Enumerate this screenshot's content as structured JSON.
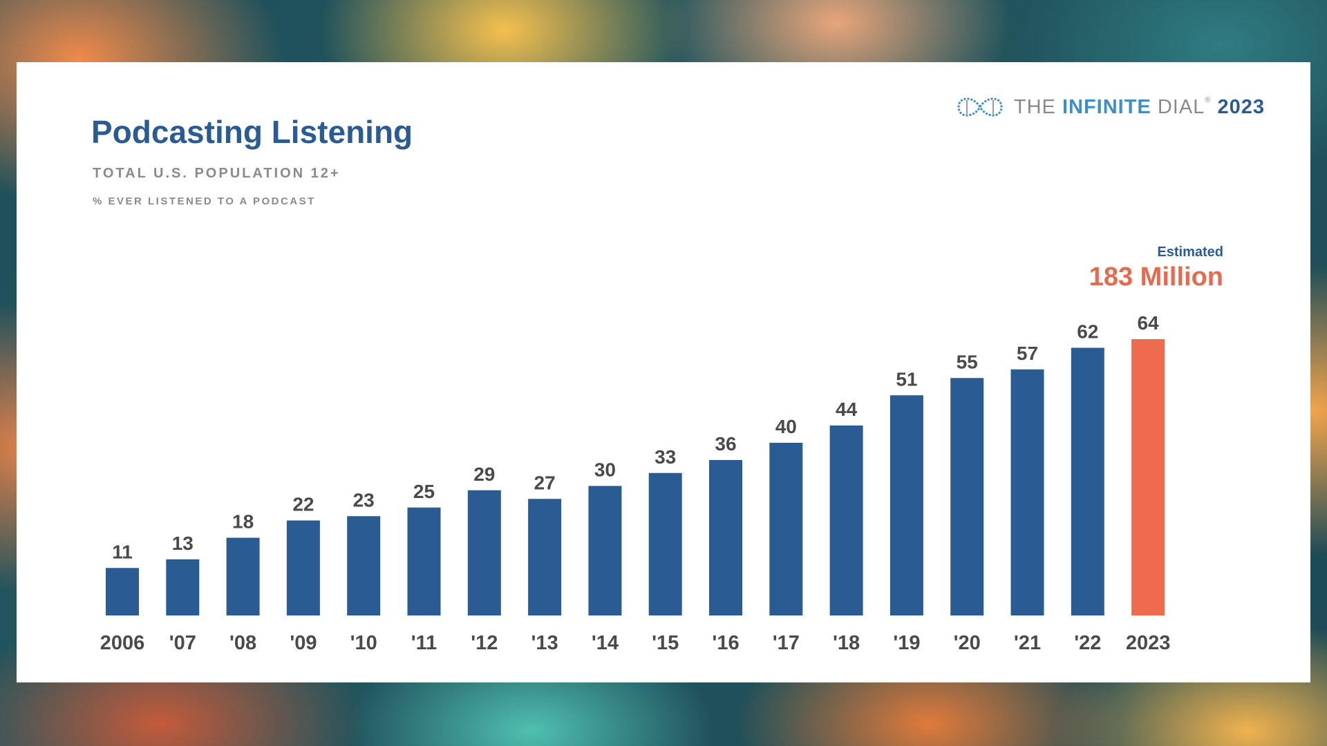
{
  "header": {
    "title": "Podcasting Listening",
    "subtitle": "TOTAL U.S. POPULATION 12+",
    "subsubtitle": "% EVER LISTENED TO A PODCAST"
  },
  "brand": {
    "prefix": "THE ",
    "highlight": "INFINITE",
    "middle": " DIAL",
    "registered": "®",
    "year": "2023"
  },
  "annotation": {
    "label": "Estimated",
    "value": "183 Million"
  },
  "colors": {
    "bar": "#2a5b93",
    "highlight_bar": "#ee6b50",
    "value_label": "#4a4a4a",
    "tick_label": "#4a4a4a"
  },
  "chart_data": {
    "type": "bar",
    "title": "Podcasting Listening",
    "subtitle": "TOTAL U.S. POPULATION 12+",
    "ylabel": "% EVER LISTENED TO A PODCAST",
    "xlabel": "",
    "categories": [
      "2006",
      "'07",
      "'08",
      "'09",
      "'10",
      "'11",
      "'12",
      "'13",
      "'14",
      "'15",
      "'16",
      "'17",
      "'18",
      "'19",
      "'20",
      "'21",
      "'22",
      "2023"
    ],
    "values": [
      11,
      13,
      18,
      22,
      23,
      25,
      29,
      27,
      30,
      33,
      36,
      40,
      44,
      51,
      55,
      57,
      62,
      64
    ],
    "highlight_index": 17,
    "ylim": [
      0,
      64
    ],
    "grid": false,
    "legend": "none",
    "data_labels": true
  }
}
